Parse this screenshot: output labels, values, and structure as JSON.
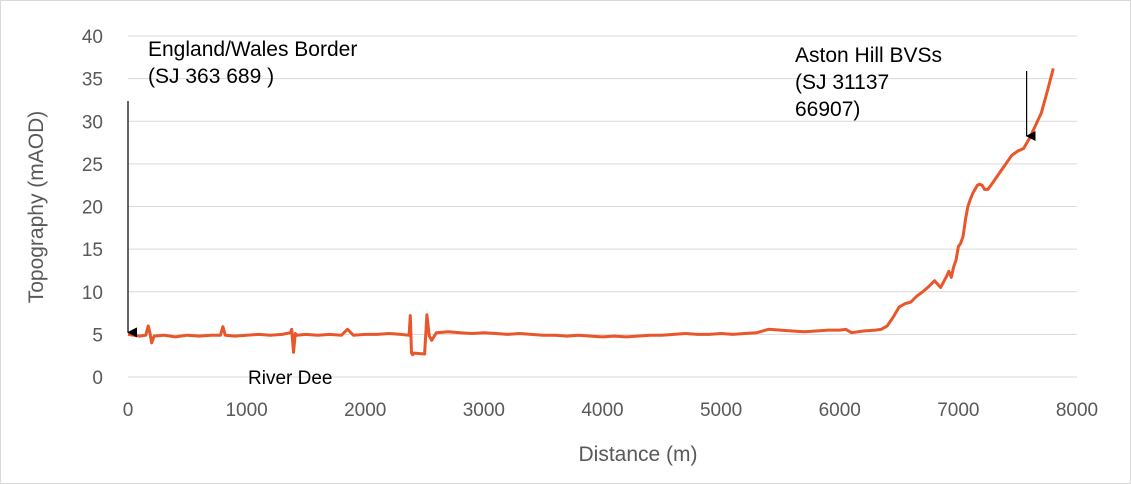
{
  "chart_data": {
    "type": "line",
    "title": "",
    "xlabel": "Distance (m)",
    "ylabel": "Topography (mAOD)",
    "xlim": [
      0,
      8000
    ],
    "ylim": [
      0,
      40
    ],
    "xticks": [
      0,
      1000,
      2000,
      3000,
      4000,
      5000,
      6000,
      7000,
      8000
    ],
    "yticks": [
      0,
      5,
      10,
      15,
      20,
      25,
      30,
      35,
      40
    ],
    "grid": "horizontal",
    "legend": "none",
    "series": [
      {
        "color": "#E8562A",
        "x": [
          0,
          100,
          150,
          170,
          185,
          200,
          220,
          300,
          400,
          500,
          600,
          700,
          780,
          800,
          820,
          900,
          1000,
          1100,
          1200,
          1300,
          1370,
          1380,
          1395,
          1410,
          1425,
          1500,
          1600,
          1700,
          1800,
          1850,
          1900,
          2000,
          2100,
          2200,
          2300,
          2370,
          2380,
          2390,
          2400,
          2410,
          2500,
          2520,
          2540,
          2560,
          2600,
          2700,
          2800,
          2900,
          3000,
          3100,
          3200,
          3300,
          3400,
          3500,
          3600,
          3700,
          3800,
          3900,
          4000,
          4100,
          4200,
          4300,
          4400,
          4500,
          4600,
          4700,
          4800,
          4900,
          5000,
          5100,
          5200,
          5300,
          5400,
          5500,
          5600,
          5700,
          5800,
          5900,
          6000,
          6050,
          6100,
          6200,
          6300,
          6350,
          6400,
          6450,
          6500,
          6550,
          6600,
          6650,
          6700,
          6750,
          6800,
          6850,
          6900,
          6920,
          6940,
          6960,
          6980,
          7000,
          7020,
          7040,
          7060,
          7080,
          7100,
          7120,
          7140,
          7160,
          7180,
          7200,
          7220,
          7250,
          7300,
          7350,
          7400,
          7450,
          7500,
          7550,
          7600,
          7650,
          7700,
          7750,
          7800
        ],
        "values": [
          5.0,
          4.8,
          4.9,
          6.0,
          5.2,
          4.0,
          4.8,
          4.9,
          4.7,
          4.9,
          4.8,
          4.9,
          4.9,
          5.9,
          4.9,
          4.8,
          4.9,
          5.0,
          4.9,
          5.0,
          5.2,
          5.6,
          2.9,
          5.1,
          4.9,
          5.0,
          4.9,
          5.0,
          4.9,
          5.6,
          4.9,
          5.0,
          5.0,
          5.1,
          5.0,
          4.9,
          7.2,
          2.8,
          2.6,
          2.8,
          2.7,
          7.3,
          4.8,
          4.3,
          5.2,
          5.3,
          5.2,
          5.1,
          5.2,
          5.1,
          5.0,
          5.1,
          5.0,
          4.9,
          4.9,
          4.8,
          4.9,
          4.8,
          4.7,
          4.8,
          4.7,
          4.8,
          4.9,
          4.9,
          5.0,
          5.1,
          5.0,
          5.0,
          5.1,
          5.0,
          5.1,
          5.2,
          5.6,
          5.5,
          5.4,
          5.3,
          5.4,
          5.5,
          5.5,
          5.6,
          5.2,
          5.4,
          5.5,
          5.6,
          6.0,
          7.0,
          8.2,
          8.6,
          8.8,
          9.5,
          10.0,
          10.6,
          11.3,
          10.5,
          11.8,
          12.4,
          11.7,
          12.9,
          13.7,
          15.3,
          15.7,
          16.5,
          18.5,
          20.0,
          20.8,
          21.5,
          22.0,
          22.5,
          22.6,
          22.5,
          22.0,
          22.0,
          23.0,
          24.0,
          25.0,
          26.0,
          26.5,
          26.8,
          28.0,
          29.5,
          31.0,
          33.5,
          36.2
        ]
      }
    ],
    "annotations": [
      {
        "lines": [
          "England/Wales Border",
          "(SJ 363 689 )"
        ],
        "x": 0,
        "y": 5,
        "arrow": true
      },
      {
        "lines": [
          "Aston Hill BVSs",
          "(SJ 31137",
          "66907)"
        ],
        "x": 7550,
        "y": 28.5,
        "arrow": true
      },
      {
        "lines": [
          "River Dee"
        ],
        "x": 1400,
        "y": 0,
        "arrow": false
      }
    ]
  }
}
